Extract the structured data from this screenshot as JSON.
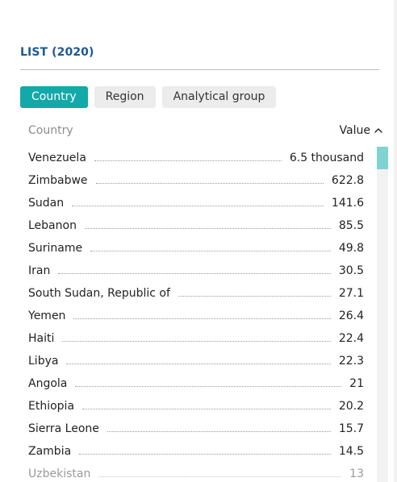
{
  "section": {
    "title": "LIST (2020)"
  },
  "tabs": [
    {
      "label": "Country",
      "active": true
    },
    {
      "label": "Region",
      "active": false
    },
    {
      "label": "Analytical group",
      "active": false
    }
  ],
  "table": {
    "col_country": "Country",
    "col_value": "Value",
    "sort_icon": "chevron-up-icon",
    "rows": [
      {
        "name": "Venezuela",
        "value": "6.5 thousand"
      },
      {
        "name": "Zimbabwe",
        "value": "622.8"
      },
      {
        "name": "Sudan",
        "value": "141.6"
      },
      {
        "name": "Lebanon",
        "value": "85.5"
      },
      {
        "name": "Suriname",
        "value": "49.8"
      },
      {
        "name": "Iran",
        "value": "30.5"
      },
      {
        "name": "South Sudan, Republic of",
        "value": "27.1"
      },
      {
        "name": "Yemen",
        "value": "26.4"
      },
      {
        "name": "Haiti",
        "value": "22.4"
      },
      {
        "name": "Libya",
        "value": "22.3"
      },
      {
        "name": "Angola",
        "value": "21"
      },
      {
        "name": "Ethiopia",
        "value": "20.2"
      },
      {
        "name": "Sierra Leone",
        "value": "15.7"
      },
      {
        "name": "Zambia",
        "value": "14.5"
      },
      {
        "name": "Uzbekistan",
        "value": "13"
      }
    ]
  },
  "colors": {
    "accent": "#14a9a9",
    "title": "#1d5a94",
    "scroll_thumb": "#7fd4d2"
  }
}
